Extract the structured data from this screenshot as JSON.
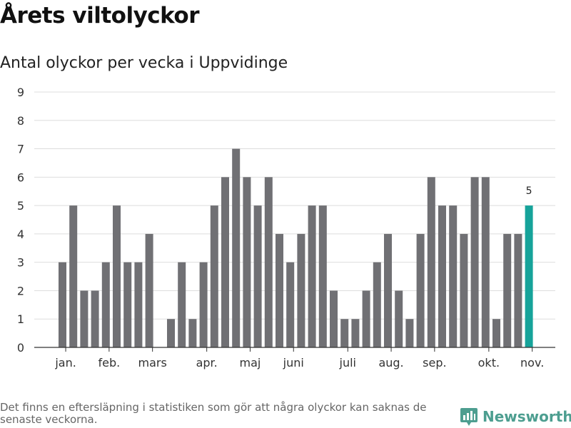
{
  "title": "Årets viltolyckor",
  "subtitle": "Antal olyckor per vecka i Uppvidinge",
  "footnote": "Det finns en eftersläpning i statistiken som gör att några olyckor kan saknas de senaste veckorna.",
  "brand": {
    "name": "Newsworthy",
    "icon": "newsworthy-logo-icon"
  },
  "colors": {
    "bar": "#707074",
    "highlight": "#16a39a",
    "grid": "#dddddd",
    "axis": "#333333"
  },
  "chart_data": {
    "type": "bar",
    "x": [
      1,
      2,
      3,
      4,
      5,
      6,
      7,
      8,
      9,
      10,
      11,
      12,
      13,
      14,
      15,
      16,
      17,
      18,
      19,
      20,
      21,
      22,
      23,
      24,
      25,
      26,
      27,
      28,
      29,
      30,
      31,
      32,
      33,
      34,
      35,
      36,
      37,
      38,
      39,
      40,
      41,
      42,
      43,
      44
    ],
    "values": [
      3,
      5,
      2,
      2,
      3,
      5,
      3,
      3,
      4,
      0,
      1,
      3,
      1,
      3,
      5,
      6,
      7,
      6,
      5,
      6,
      4,
      3,
      4,
      5,
      5,
      2,
      1,
      1,
      2,
      3,
      4,
      2,
      1,
      4,
      6,
      5,
      5,
      4,
      6,
      6,
      1,
      4,
      4,
      5
    ],
    "highlight_index": 43,
    "data_labels": [
      {
        "index": 43,
        "text": "5"
      }
    ],
    "ylim": [
      0,
      9
    ],
    "yticks": [
      0,
      1,
      2,
      3,
      4,
      5,
      6,
      7,
      8,
      9
    ],
    "xticks": [
      {
        "at": 1.3,
        "label": "jan."
      },
      {
        "at": 5.3,
        "label": "feb."
      },
      {
        "at": 9.3,
        "label": "mars"
      },
      {
        "at": 14.3,
        "label": "apr."
      },
      {
        "at": 18.3,
        "label": "maj"
      },
      {
        "at": 22.3,
        "label": "juni"
      },
      {
        "at": 27.3,
        "label": "juli"
      },
      {
        "at": 31.3,
        "label": "aug."
      },
      {
        "at": 35.3,
        "label": "sep."
      },
      {
        "at": 40.3,
        "label": "okt."
      },
      {
        "at": 44.3,
        "label": "nov."
      }
    ],
    "grid": true,
    "legend": "none",
    "xlabel": "",
    "ylabel": ""
  }
}
